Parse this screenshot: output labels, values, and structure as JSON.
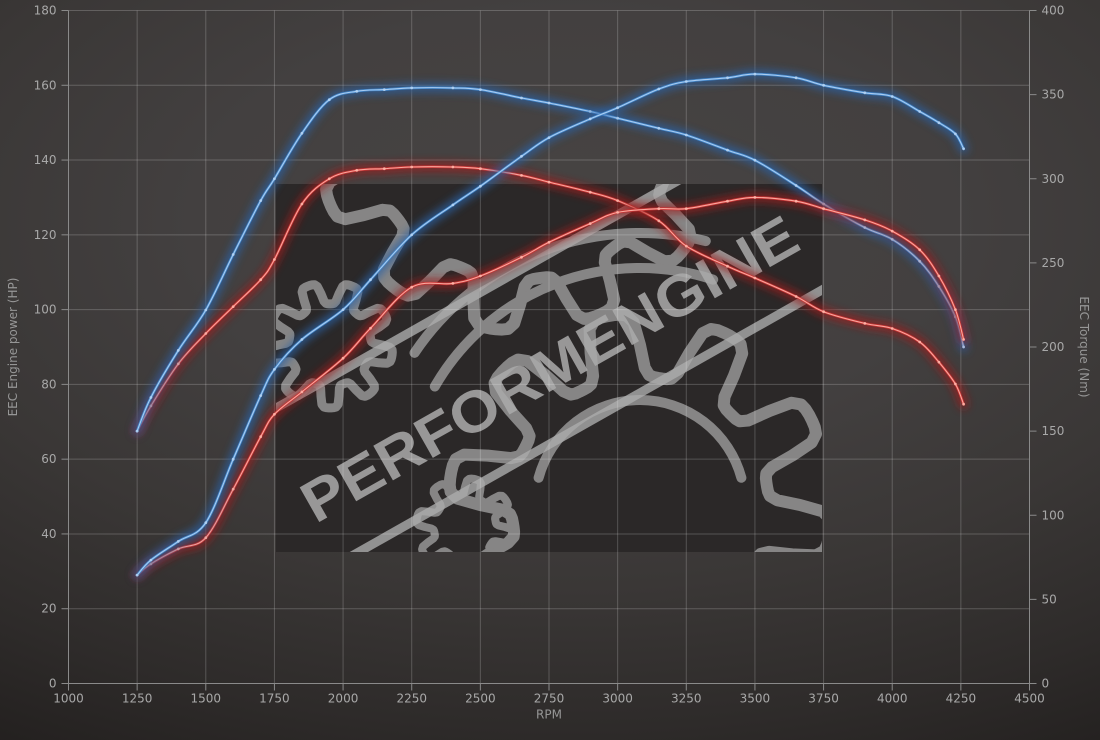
{
  "chart_data": {
    "type": "line",
    "title": "",
    "xlabel": "RPM",
    "ylabel_left": "EEC Engine power (HP)",
    "ylabel_right": "EEC Torque (Nm)",
    "xlim": [
      1000,
      4500
    ],
    "ylim_left": [
      0,
      180
    ],
    "ylim_right": [
      0,
      400
    ],
    "x_ticks": [
      1000,
      1250,
      1500,
      1750,
      2000,
      2250,
      2500,
      2750,
      3000,
      3250,
      3500,
      3750,
      4000,
      4250,
      4500
    ],
    "y_ticks_left": [
      0,
      20,
      40,
      60,
      80,
      100,
      120,
      140,
      160,
      180
    ],
    "y_ticks_right": [
      0,
      50,
      100,
      150,
      200,
      250,
      300,
      350,
      400
    ],
    "grid": true,
    "legend": "none",
    "watermark": {
      "text": "PERFORMENGINE"
    },
    "series": [
      {
        "name": "torque-red",
        "axis": "right",
        "color_main": "#c93434",
        "color_glow": "#9c1f1f",
        "color_core": "#ffb4a8",
        "points": [
          [
            1250,
            150
          ],
          [
            1300,
            165
          ],
          [
            1400,
            190
          ],
          [
            1500,
            208
          ],
          [
            1600,
            224
          ],
          [
            1700,
            240
          ],
          [
            1750,
            252
          ],
          [
            1850,
            285
          ],
          [
            1950,
            300
          ],
          [
            2050,
            305
          ],
          [
            2150,
            306
          ],
          [
            2250,
            307
          ],
          [
            2400,
            307
          ],
          [
            2500,
            306
          ],
          [
            2650,
            302
          ],
          [
            2750,
            298
          ],
          [
            2900,
            292
          ],
          [
            3000,
            287
          ],
          [
            3150,
            275
          ],
          [
            3250,
            260
          ],
          [
            3400,
            248
          ],
          [
            3500,
            241
          ],
          [
            3650,
            230
          ],
          [
            3750,
            221
          ],
          [
            3900,
            214
          ],
          [
            4000,
            211
          ],
          [
            4100,
            203
          ],
          [
            4170,
            191
          ],
          [
            4230,
            178
          ],
          [
            4260,
            166
          ]
        ]
      },
      {
        "name": "torque-blue",
        "axis": "right",
        "color_main": "#4286ca",
        "color_glow": "#2a62a5",
        "color_core": "#b5d4f5",
        "points": [
          [
            1250,
            150
          ],
          [
            1300,
            170
          ],
          [
            1400,
            198
          ],
          [
            1500,
            222
          ],
          [
            1600,
            255
          ],
          [
            1700,
            287
          ],
          [
            1750,
            300
          ],
          [
            1850,
            327
          ],
          [
            1950,
            347
          ],
          [
            2050,
            352
          ],
          [
            2150,
            353
          ],
          [
            2250,
            354
          ],
          [
            2400,
            354
          ],
          [
            2500,
            353
          ],
          [
            2650,
            348
          ],
          [
            2750,
            345
          ],
          [
            2900,
            340
          ],
          [
            3000,
            336
          ],
          [
            3150,
            330
          ],
          [
            3250,
            326
          ],
          [
            3400,
            317
          ],
          [
            3500,
            311
          ],
          [
            3650,
            296
          ],
          [
            3750,
            285
          ],
          [
            3900,
            271
          ],
          [
            4000,
            264
          ],
          [
            4100,
            251
          ],
          [
            4170,
            236
          ],
          [
            4230,
            218
          ],
          [
            4260,
            200
          ]
        ]
      },
      {
        "name": "power-red",
        "axis": "left",
        "color_main": "#c93434",
        "color_glow": "#9c1f1f",
        "color_core": "#ffb4a8",
        "points": [
          [
            1250,
            29
          ],
          [
            1300,
            32
          ],
          [
            1400,
            36
          ],
          [
            1500,
            39
          ],
          [
            1600,
            52
          ],
          [
            1700,
            66
          ],
          [
            1750,
            72
          ],
          [
            1850,
            78
          ],
          [
            2000,
            87
          ],
          [
            2100,
            95
          ],
          [
            2250,
            106
          ],
          [
            2400,
            107
          ],
          [
            2500,
            109
          ],
          [
            2650,
            114
          ],
          [
            2750,
            118
          ],
          [
            2900,
            123
          ],
          [
            3000,
            126
          ],
          [
            3150,
            127
          ],
          [
            3250,
            127
          ],
          [
            3400,
            129
          ],
          [
            3500,
            130
          ],
          [
            3650,
            129
          ],
          [
            3750,
            127
          ],
          [
            3900,
            124
          ],
          [
            4000,
            121
          ],
          [
            4100,
            116
          ],
          [
            4170,
            109
          ],
          [
            4230,
            100
          ],
          [
            4260,
            92
          ]
        ]
      },
      {
        "name": "power-blue",
        "axis": "left",
        "color_main": "#4286ca",
        "color_glow": "#2a62a5",
        "color_core": "#b5d4f5",
        "points": [
          [
            1250,
            29
          ],
          [
            1300,
            33
          ],
          [
            1400,
            38
          ],
          [
            1500,
            43
          ],
          [
            1600,
            60
          ],
          [
            1700,
            77
          ],
          [
            1750,
            84
          ],
          [
            1850,
            92
          ],
          [
            2000,
            100
          ],
          [
            2100,
            108
          ],
          [
            2250,
            120
          ],
          [
            2400,
            128
          ],
          [
            2500,
            133
          ],
          [
            2650,
            141
          ],
          [
            2750,
            146
          ],
          [
            2900,
            151
          ],
          [
            3000,
            154
          ],
          [
            3150,
            159
          ],
          [
            3250,
            161
          ],
          [
            3400,
            162
          ],
          [
            3500,
            163
          ],
          [
            3650,
            162
          ],
          [
            3750,
            160
          ],
          [
            3900,
            158
          ],
          [
            4000,
            157
          ],
          [
            4100,
            153
          ],
          [
            4170,
            150
          ],
          [
            4230,
            147
          ],
          [
            4260,
            143
          ]
        ]
      }
    ]
  },
  "colors": {
    "grid": "rgba(255,255,255,0.20)",
    "axis": "#8a8a8a",
    "tick_label": "#a8a8a8",
    "axis_title": "#969696",
    "watermark_panel": "#2b2828",
    "watermark_logo": "#a0a0a0",
    "watermark_accent": "#ababab"
  }
}
